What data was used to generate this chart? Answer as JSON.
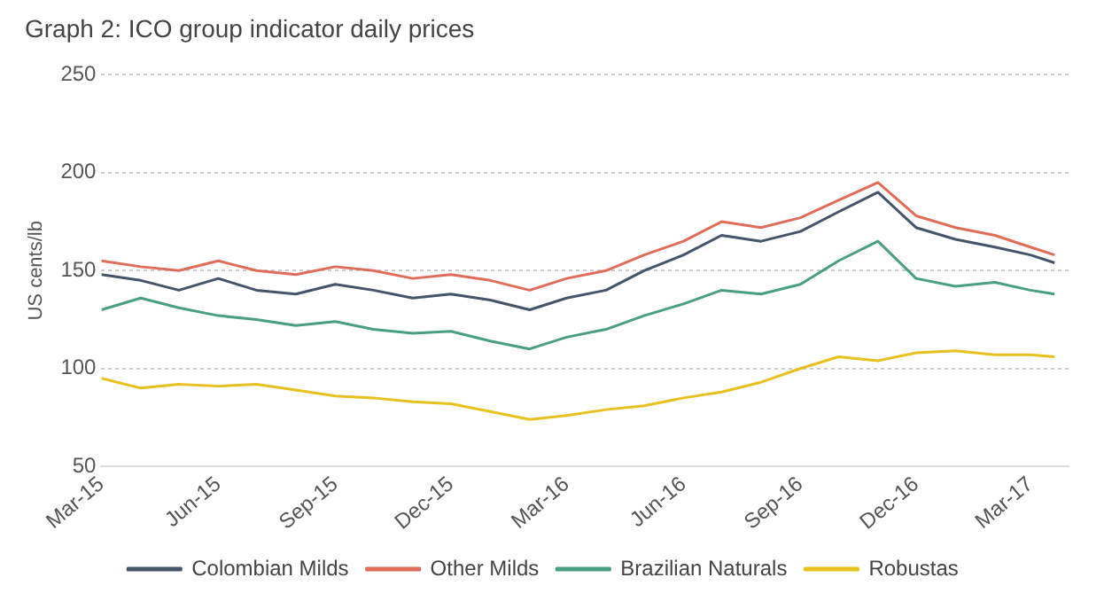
{
  "chart_data": {
    "type": "line",
    "title": "Graph 2: ICO group indicator daily prices",
    "ylabel": "US cents/lb",
    "x": [
      "2015-03-01",
      "2015-04-01",
      "2015-05-01",
      "2015-06-01",
      "2015-07-01",
      "2015-08-01",
      "2015-09-01",
      "2015-10-01",
      "2015-11-01",
      "2015-12-01",
      "2016-01-01",
      "2016-02-01",
      "2016-03-01",
      "2016-04-01",
      "2016-05-01",
      "2016-06-01",
      "2016-07-01",
      "2016-08-01",
      "2016-09-01",
      "2016-10-01",
      "2016-11-01",
      "2016-12-01",
      "2017-01-01",
      "2017-02-01",
      "2017-03-01",
      "2017-03-20"
    ],
    "series": [
      {
        "name": "Colombian Milds",
        "color": "#44546a",
        "values": [
          148,
          145,
          140,
          146,
          140,
          138,
          143,
          140,
          136,
          138,
          135,
          130,
          136,
          140,
          150,
          158,
          168,
          165,
          170,
          180,
          190,
          172,
          166,
          162,
          158,
          154
        ]
      },
      {
        "name": "Other Milds",
        "color": "#e06c5a",
        "values": [
          155,
          152,
          150,
          155,
          150,
          148,
          152,
          150,
          146,
          148,
          145,
          140,
          146,
          150,
          158,
          165,
          175,
          172,
          177,
          186,
          195,
          178,
          172,
          168,
          162,
          158
        ]
      },
      {
        "name": "Brazilian Naturals",
        "color": "#4a9e82",
        "values": [
          130,
          136,
          131,
          127,
          125,
          122,
          124,
          120,
          118,
          119,
          114,
          110,
          116,
          120,
          127,
          133,
          140,
          138,
          143,
          155,
          165,
          146,
          142,
          144,
          140,
          138
        ]
      },
      {
        "name": "Robustas",
        "color": "#e8c020",
        "values": [
          95,
          90,
          92,
          91,
          92,
          89,
          86,
          85,
          83,
          82,
          78,
          74,
          76,
          79,
          81,
          85,
          88,
          93,
          100,
          106,
          104,
          108,
          109,
          107,
          107,
          106
        ]
      }
    ],
    "xlim": [
      "2015-03-01",
      "2017-03-31"
    ],
    "xticks": [
      {
        "value": "2015-03-01",
        "label": "Mar-15"
      },
      {
        "value": "2015-06-01",
        "label": "Jun-15"
      },
      {
        "value": "2015-09-01",
        "label": "Sep-15"
      },
      {
        "value": "2015-12-01",
        "label": "Dec-15"
      },
      {
        "value": "2016-03-01",
        "label": "Mar-16"
      },
      {
        "value": "2016-06-01",
        "label": "Jun-16"
      },
      {
        "value": "2016-09-01",
        "label": "Sep-16"
      },
      {
        "value": "2016-12-01",
        "label": "Dec-16"
      },
      {
        "value": "2017-03-01",
        "label": "Mar-17"
      }
    ],
    "ylim": [
      50,
      250
    ],
    "yticks": [
      50,
      100,
      150,
      200,
      250
    ],
    "grid": "y",
    "legend": "bottom",
    "marker": "none",
    "line_style": "solid"
  }
}
